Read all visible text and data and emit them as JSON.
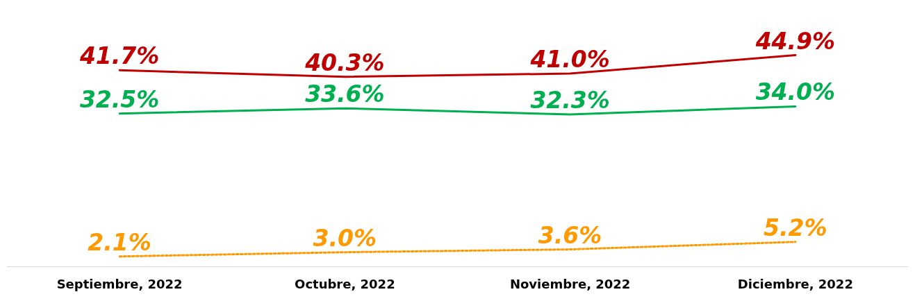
{
  "chart_data": {
    "type": "line",
    "categories": [
      "Septiembre, 2022",
      "Octubre, 2022",
      "Noviembre, 2022",
      "Diciembre, 2022"
    ],
    "series": [
      {
        "color": "#c00000",
        "values": [
          41.7,
          40.3,
          41.0,
          44.9
        ],
        "value_labels": [
          "41.7%",
          "40.3%",
          "41.0%",
          "44.9%"
        ],
        "line_style": "solid"
      },
      {
        "color": "#00b050",
        "values": [
          32.5,
          33.6,
          32.3,
          34.0
        ],
        "value_labels": [
          "32.5%",
          "33.6%",
          "32.3%",
          "34.0%"
        ],
        "line_style": "solid"
      },
      {
        "color": "#ff9900",
        "values": [
          2.1,
          3.0,
          3.6,
          5.2
        ],
        "value_labels": [
          "2.1%",
          "3.0%",
          "3.6%",
          "5.2%"
        ],
        "line_style": "dotted"
      }
    ],
    "grid": false
  }
}
